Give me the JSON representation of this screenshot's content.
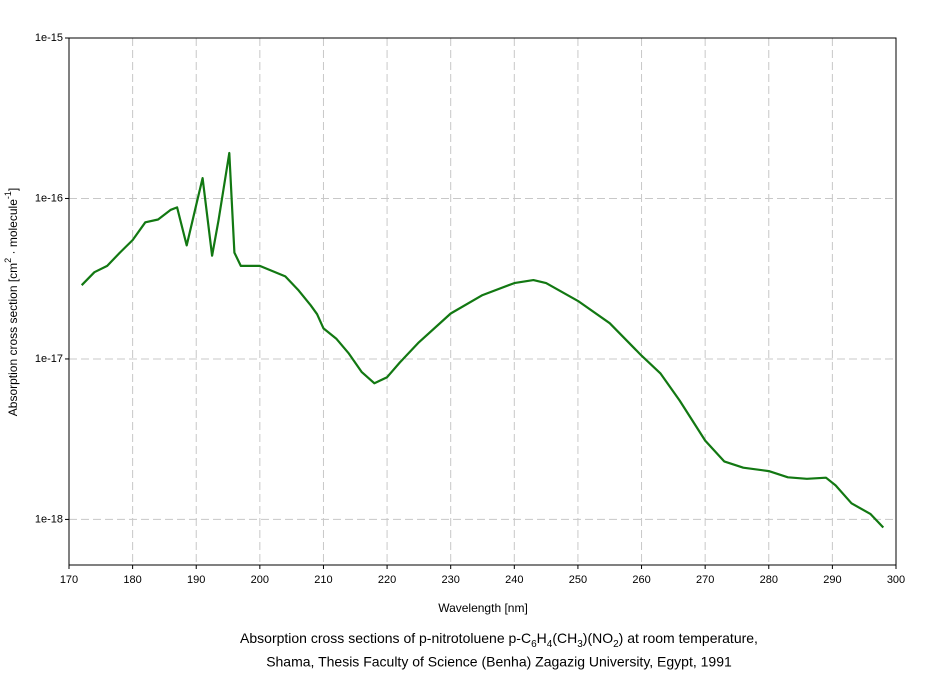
{
  "chart_data": {
    "type": "line",
    "log_y": true,
    "grid": true,
    "color": "#127812",
    "title": [
      "Absorption cross sections of p-nitrotoluene p-C",
      "6",
      "H",
      "4",
      "(CH",
      "3",
      ")(NO",
      "2",
      ") at room temperature,"
    ],
    "subtitle": "Shama, Thesis Faculty of Science (Benha) Zagazig University, Egypt, 1991",
    "xlabel": "Wavelength [nm]",
    "ylabel": [
      "Absorption cross section [cm",
      "2",
      " · molecule",
      "-1",
      "]"
    ],
    "xlim": [
      170,
      300
    ],
    "xticks": [
      170,
      180,
      190,
      200,
      210,
      220,
      230,
      240,
      250,
      260,
      270,
      280,
      290,
      300
    ],
    "ylim": [
      5.2e-19,
      1e-15
    ],
    "yticks": [
      1e-18,
      1e-17,
      1e-16,
      1e-15
    ],
    "x": [
      172,
      174,
      176,
      178,
      180,
      182,
      184,
      186,
      187,
      188.5,
      190,
      191,
      192.5,
      193.5,
      195.2,
      196,
      197,
      200,
      204,
      206,
      208,
      209,
      210,
      212,
      214,
      216,
      218,
      220,
      222,
      225,
      230,
      235,
      240,
      243,
      245,
      250,
      255,
      260,
      263,
      266,
      270,
      273,
      276,
      280,
      283,
      286,
      289,
      290.5,
      293,
      296,
      298
    ],
    "series": [
      {
        "values": [
          2.88e-17,
          3.47e-17,
          3.8e-17,
          4.6e-17,
          5.5e-17,
          7.1e-17,
          7.4e-17,
          8.5e-17,
          8.8e-17,
          5.1e-17,
          9.1e-17,
          1.34e-16,
          4.4e-17,
          7.3e-17,
          1.92e-16,
          4.6e-17,
          3.8e-17,
          3.8e-17,
          3.27e-17,
          2.7e-17,
          2.16e-17,
          1.9e-17,
          1.55e-17,
          1.34e-17,
          1.08e-17,
          8.3e-18,
          7.05e-18,
          7.7e-18,
          9.5e-18,
          1.27e-17,
          1.92e-17,
          2.5e-17,
          2.97e-17,
          3.1e-17,
          2.97e-17,
          2.3e-17,
          1.67e-17,
          1.05e-17,
          8.1e-18,
          5.5e-18,
          3.1e-18,
          2.3e-18,
          2.1e-18,
          2e-18,
          1.83e-18,
          1.79e-18,
          1.82e-18,
          1.63e-18,
          1.26e-18,
          1.08e-18,
          8.9e-19
        ]
      }
    ]
  }
}
